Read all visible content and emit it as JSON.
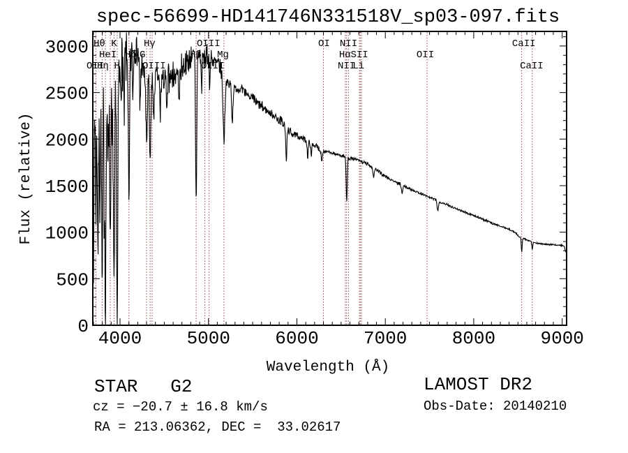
{
  "chart_data": {
    "type": "line",
    "title": "spec-56699-HD141746N331518V_sp03-097.fits",
    "xlabel": "Wavelength (Å)",
    "ylabel": "Flux (relative)",
    "xlim": [
      3692,
      9050
    ],
    "ylim": [
      0,
      3157
    ],
    "x_ticks": [
      4000,
      5000,
      6000,
      7000,
      8000,
      9000
    ],
    "y_ticks": [
      0,
      500,
      1000,
      1500,
      2000,
      2500,
      3000
    ],
    "x_minor_step": 100,
    "y_minor_step": 100,
    "grid": false,
    "legend": null,
    "line_color": "#000000",
    "marker_line_color": "#8b4343",
    "marker_lines": [
      3727,
      3798,
      3835,
      3889,
      3933,
      3968,
      4101,
      4300,
      4340,
      4363,
      4861,
      4959,
      5007,
      5175,
      6300,
      6548,
      6563,
      6583,
      6707,
      6717,
      6731,
      7472,
      8542,
      8662
    ],
    "marker_labels": [
      {
        "text": "Hθ K",
        "row": 1,
        "wavelength": 3700
      },
      {
        "text": "Hγ",
        "row": 1,
        "wavelength": 4268
      },
      {
        "text": "OIII",
        "row": 1,
        "wavelength": 4868
      },
      {
        "text": "OI",
        "row": 1,
        "wavelength": 6241
      },
      {
        "text": "NII",
        "row": 1,
        "wavelength": 6485
      },
      {
        "text": "CaII",
        "row": 1,
        "wavelength": 8434
      },
      {
        "text": "HeI",
        "row": 2,
        "wavelength": 3763
      },
      {
        "text": "Hδ",
        "row": 2,
        "wavelength": 4055
      },
      {
        "text": "G",
        "row": 2,
        "wavelength": 4221
      },
      {
        "text": "Hβ",
        "row": 2,
        "wavelength": 4789
      },
      {
        "text": "Mg",
        "row": 2,
        "wavelength": 5097
      },
      {
        "text": "Hα",
        "row": 2,
        "wavelength": 6477
      },
      {
        "text": "SII",
        "row": 2,
        "wavelength": 6608
      },
      {
        "text": "OII",
        "row": 2,
        "wavelength": 7353
      },
      {
        "text": "OII",
        "row": 3,
        "wavelength": 3621
      },
      {
        "text": "Hη",
        "row": 3,
        "wavelength": 3739
      },
      {
        "text": "H",
        "row": 3,
        "wavelength": 3933
      },
      {
        "text": "OIII",
        "row": 3,
        "wavelength": 4252
      },
      {
        "text": "OIII",
        "row": 3,
        "wavelength": 4915
      },
      {
        "text": "NII",
        "row": 3,
        "wavelength": 6462
      },
      {
        "text": "Li",
        "row": 3,
        "wavelength": 6631
      },
      {
        "text": "CaII",
        "row": 3,
        "wavelength": 8522
      }
    ],
    "spectrum": {
      "wav_start": 3692,
      "wav_end": 9050,
      "step": 4,
      "seed": 7,
      "clip_min": 10,
      "clip_max": 3148,
      "start_point": [
        3692,
        240
      ],
      "continuum": [
        [
          3692,
          1900
        ],
        [
          3710,
          2250
        ],
        [
          3750,
          2320
        ],
        [
          3800,
          2380
        ],
        [
          3850,
          2400
        ],
        [
          3900,
          2460
        ],
        [
          3950,
          2480
        ],
        [
          4000,
          2700
        ],
        [
          4040,
          2870
        ],
        [
          4090,
          2830
        ],
        [
          4130,
          2900
        ],
        [
          4170,
          2980
        ],
        [
          4210,
          2890
        ],
        [
          4260,
          2720
        ],
        [
          4310,
          2630
        ],
        [
          4360,
          2590
        ],
        [
          4420,
          2680
        ],
        [
          4450,
          2620
        ],
        [
          4550,
          2660
        ],
        [
          4650,
          2720
        ],
        [
          4750,
          2830
        ],
        [
          4820,
          2900
        ],
        [
          4870,
          2930
        ],
        [
          4930,
          2870
        ],
        [
          4990,
          2900
        ],
        [
          5050,
          2840
        ],
        [
          5120,
          2790
        ],
        [
          5200,
          2620
        ],
        [
          5280,
          2550
        ],
        [
          5360,
          2530
        ],
        [
          5440,
          2480
        ],
        [
          5520,
          2410
        ],
        [
          5600,
          2350
        ],
        [
          5680,
          2290
        ],
        [
          5760,
          2240
        ],
        [
          5840,
          2180
        ],
        [
          5920,
          2080
        ],
        [
          6000,
          2030
        ],
        [
          6100,
          1990
        ],
        [
          6200,
          1930
        ],
        [
          6300,
          1870
        ],
        [
          6400,
          1845
        ],
        [
          6500,
          1825
        ],
        [
          6600,
          1795
        ],
        [
          6700,
          1770
        ],
        [
          6800,
          1730
        ],
        [
          6900,
          1670
        ],
        [
          7000,
          1600
        ],
        [
          7100,
          1545
        ],
        [
          7200,
          1500
        ],
        [
          7300,
          1455
        ],
        [
          7400,
          1415
        ],
        [
          7500,
          1375
        ],
        [
          7600,
          1335
        ],
        [
          7700,
          1295
        ],
        [
          7800,
          1255
        ],
        [
          7900,
          1215
        ],
        [
          8000,
          1180
        ],
        [
          8100,
          1140
        ],
        [
          8200,
          1100
        ],
        [
          8300,
          1065
        ],
        [
          8400,
          1030
        ],
        [
          8480,
          990
        ],
        [
          8520,
          950
        ],
        [
          8560,
          930
        ],
        [
          8620,
          910
        ],
        [
          8700,
          885
        ],
        [
          8800,
          870
        ],
        [
          8900,
          865
        ],
        [
          9000,
          858
        ],
        [
          9050,
          845
        ]
      ],
      "noise": [
        [
          3692,
          650
        ],
        [
          3950,
          620
        ],
        [
          4000,
          420
        ],
        [
          4200,
          350
        ],
        [
          4300,
          300
        ],
        [
          4400,
          200
        ],
        [
          4600,
          170
        ],
        [
          4800,
          160
        ],
        [
          5000,
          140
        ],
        [
          5200,
          110
        ],
        [
          5400,
          85
        ],
        [
          5600,
          70
        ],
        [
          5800,
          60
        ],
        [
          6000,
          50
        ],
        [
          6200,
          42
        ],
        [
          6400,
          35
        ],
        [
          6600,
          30
        ],
        [
          6800,
          26
        ],
        [
          7000,
          22
        ],
        [
          7400,
          18
        ],
        [
          7800,
          16
        ],
        [
          8200,
          15
        ],
        [
          8600,
          14
        ],
        [
          9050,
          13
        ]
      ],
      "absorptions": [
        [
          3700,
          1700,
          4
        ],
        [
          3727,
          900,
          5
        ],
        [
          3750,
          1500,
          6
        ],
        [
          3772,
          1000,
          5
        ],
        [
          3798,
          2000,
          6
        ],
        [
          3820,
          900,
          4
        ],
        [
          3835,
          2100,
          6
        ],
        [
          3860,
          800,
          4
        ],
        [
          3889,
          1500,
          6
        ],
        [
          3912,
          700,
          4
        ],
        [
          3933,
          2350,
          7
        ],
        [
          3968,
          2500,
          7
        ],
        [
          4045,
          700,
          5
        ],
        [
          4101,
          1600,
          7
        ],
        [
          4144,
          500,
          5
        ],
        [
          4226,
          600,
          5
        ],
        [
          4300,
          700,
          8
        ],
        [
          4340,
          950,
          7
        ],
        [
          4383,
          500,
          5
        ],
        [
          4455,
          380,
          5
        ],
        [
          4531,
          360,
          6
        ],
        [
          4668,
          320,
          6
        ],
        [
          4861,
          1600,
          7
        ],
        [
          4922,
          320,
          5
        ],
        [
          5015,
          280,
          5
        ],
        [
          5175,
          680,
          10
        ],
        [
          5270,
          360,
          7
        ],
        [
          5880,
          350,
          7
        ],
        [
          6122,
          170,
          6
        ],
        [
          6162,
          150,
          5
        ],
        [
          6280,
          120,
          5
        ],
        [
          6563,
          480,
          6
        ],
        [
          6867,
          100,
          7
        ],
        [
          7190,
          90,
          7
        ],
        [
          7594,
          100,
          8
        ],
        [
          8542,
          155,
          5
        ],
        [
          8662,
          85,
          5
        ],
        [
          9040,
          60,
          8
        ]
      ]
    }
  },
  "annotations": {
    "class_line": "STAR   G2",
    "cz_line": "cz = −20.7 ± 16.8 km/s",
    "radec_line": "RA = 213.06362, DEC =  33.02617",
    "survey": "LAMOST DR2",
    "obsdate": "Obs-Date: 20140210"
  }
}
